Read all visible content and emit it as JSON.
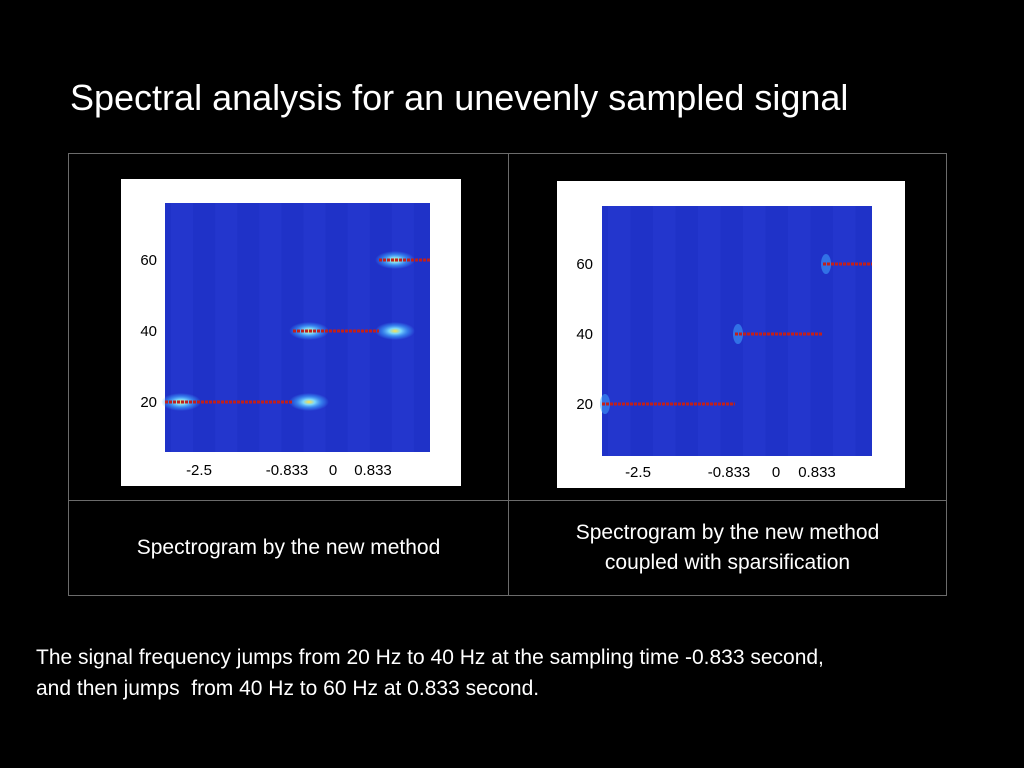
{
  "title": "Spectral analysis for an unevenly sampled signal",
  "captions": {
    "left": "Spectrogram by the new method",
    "right_line1": "Spectrogram by the new method",
    "right_line2": "coupled with sparsification"
  },
  "description": {
    "line1": "The signal frequency jumps from 20 Hz to 40 Hz at the sampling time -0.833 second,",
    "line2": "and then jumps  from 40 Hz to 60 Hz at 0.833 second."
  },
  "colors": {
    "background": "#000000",
    "spectrogram_bg": "#1f32c8",
    "ridge": "#c0201c",
    "hotspot": "#ffe14a",
    "halo": "#3fa6ff"
  },
  "chart_data": [
    {
      "type": "heatmap",
      "panel": "left",
      "x_tick_labels": [
        "-2.5",
        "-0.833",
        "0",
        "0.833"
      ],
      "y_tick_labels": [
        "20",
        "40",
        "60"
      ],
      "xlim": [
        -2.5,
        2.5
      ],
      "ylim": [
        0,
        70
      ],
      "segments": [
        {
          "t_start": -2.5,
          "t_end": -0.833,
          "freq": 20
        },
        {
          "t_start": -0.833,
          "t_end": 0.833,
          "freq": 40
        },
        {
          "t_start": 0.833,
          "t_end": 2.5,
          "freq": 60
        }
      ],
      "artifacts": [
        {
          "t": -2.5,
          "freq": 20
        },
        {
          "t": -0.833,
          "freq": 20
        },
        {
          "t": -0.833,
          "freq": 40
        },
        {
          "t": 0.833,
          "freq": 40
        },
        {
          "t": 0.833,
          "freq": 60
        }
      ]
    },
    {
      "type": "heatmap",
      "panel": "right",
      "x_tick_labels": [
        "-2.5",
        "-0.833",
        "0",
        "0.833"
      ],
      "y_tick_labels": [
        "20",
        "40",
        "60"
      ],
      "xlim": [
        -2.5,
        2.5
      ],
      "ylim": [
        0,
        70
      ],
      "segments": [
        {
          "t_start": -2.5,
          "t_end": -0.833,
          "freq": 20
        },
        {
          "t_start": -0.833,
          "t_end": 0.833,
          "freq": 40
        },
        {
          "t_start": 0.833,
          "t_end": 2.5,
          "freq": 60
        }
      ],
      "artifacts": []
    }
  ]
}
